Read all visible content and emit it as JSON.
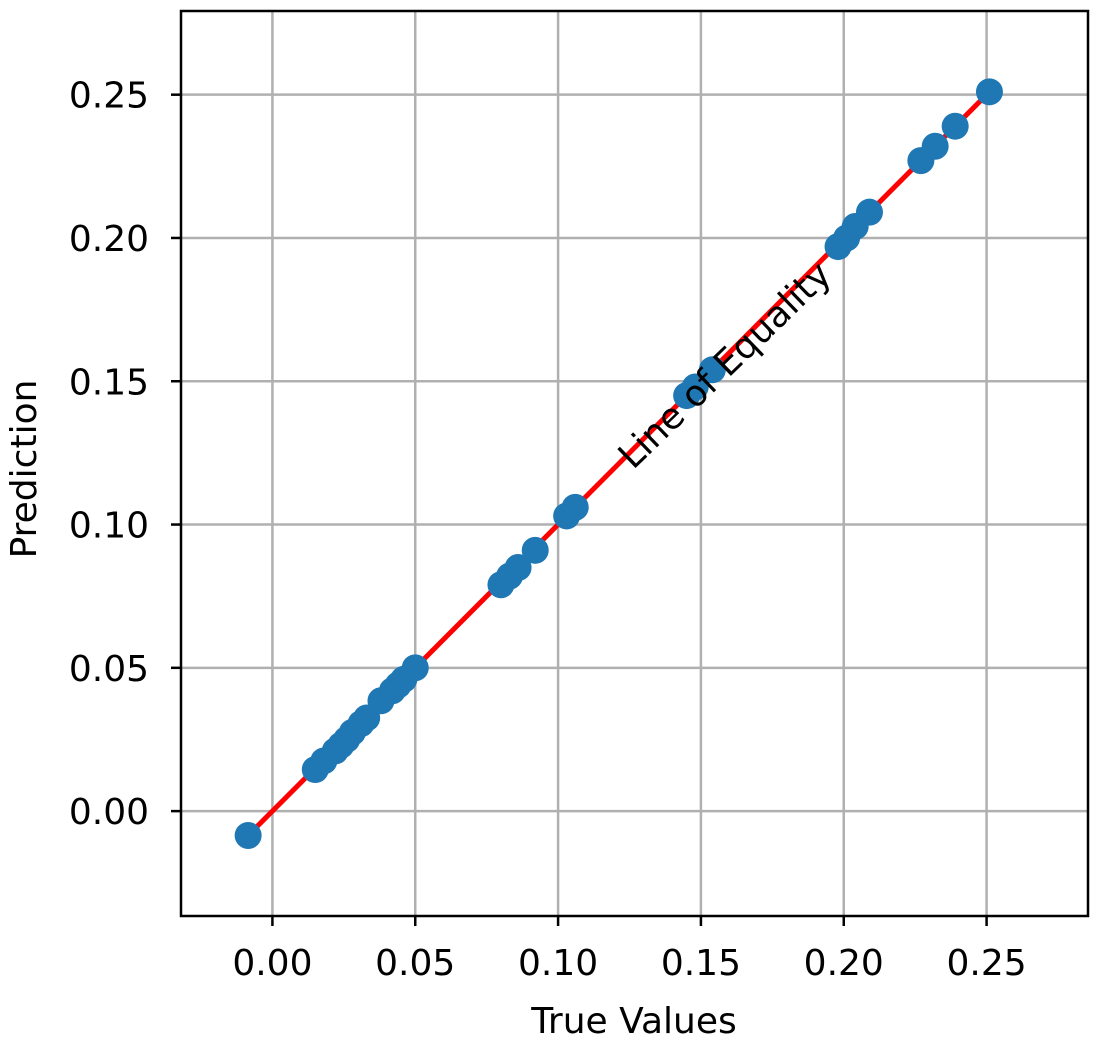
{
  "chart_data": {
    "type": "scatter",
    "xlabel": "True Values",
    "ylabel": "Prediction",
    "xlim": [
      -0.032,
      0.2855
    ],
    "ylim": [
      -0.0366,
      0.2792
    ],
    "x_ticks": [
      0.0,
      0.05,
      0.1,
      0.15,
      0.2,
      0.25
    ],
    "x_tick_labels": [
      "0.00",
      "0.05",
      "0.10",
      "0.15",
      "0.20",
      "0.25"
    ],
    "y_ticks": [
      0.0,
      0.05,
      0.1,
      0.15,
      0.2,
      0.25
    ],
    "y_tick_labels": [
      "0.00",
      "0.05",
      "0.10",
      "0.15",
      "0.20",
      "0.25"
    ],
    "grid": true,
    "points": [
      [
        -0.0085,
        -0.0085
      ],
      [
        0.015,
        0.0145
      ],
      [
        0.018,
        0.0175
      ],
      [
        0.022,
        0.021
      ],
      [
        0.024,
        0.023
      ],
      [
        0.026,
        0.025
      ],
      [
        0.028,
        0.0275
      ],
      [
        0.031,
        0.0305
      ],
      [
        0.033,
        0.0325
      ],
      [
        0.038,
        0.0385
      ],
      [
        0.042,
        0.042
      ],
      [
        0.044,
        0.044
      ],
      [
        0.046,
        0.046
      ],
      [
        0.05,
        0.05
      ],
      [
        0.08,
        0.079
      ],
      [
        0.083,
        0.082
      ],
      [
        0.086,
        0.085
      ],
      [
        0.092,
        0.091
      ],
      [
        0.103,
        0.103
      ],
      [
        0.106,
        0.106
      ],
      [
        0.145,
        0.145
      ],
      [
        0.148,
        0.148
      ],
      [
        0.154,
        0.154
      ],
      [
        0.198,
        0.197
      ],
      [
        0.201,
        0.2
      ],
      [
        0.204,
        0.204
      ],
      [
        0.209,
        0.209
      ],
      [
        0.227,
        0.227
      ],
      [
        0.232,
        0.232
      ],
      [
        0.239,
        0.239
      ],
      [
        0.251,
        0.251
      ]
    ],
    "equality_line": {
      "x": [
        -0.0085,
        0.251
      ],
      "y": [
        -0.0085,
        0.251
      ]
    },
    "annotation": {
      "text": "Line of Equality",
      "x": 0.1585,
      "y": 0.1555,
      "rotation_deg": -44
    },
    "colors": {
      "points": "#1f77b4",
      "line": "#ff0000",
      "grid": "#b0b0b0"
    }
  }
}
